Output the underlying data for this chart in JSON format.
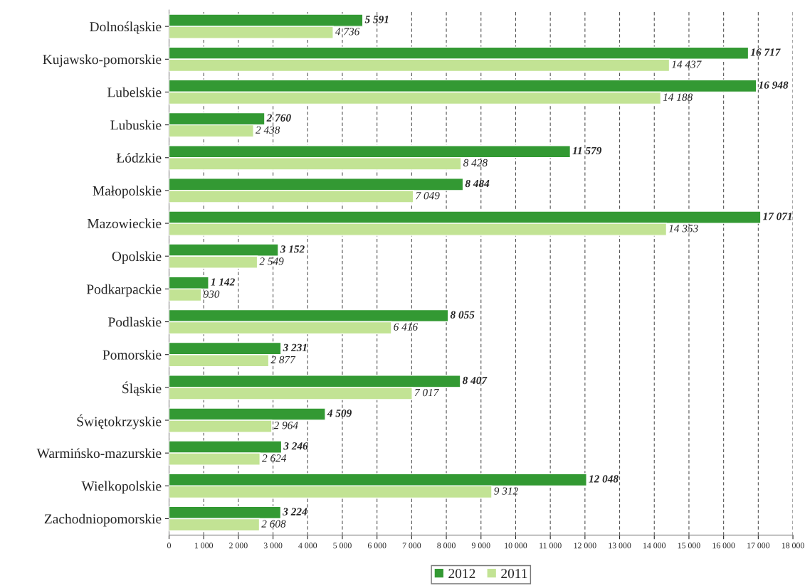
{
  "chart_data": {
    "type": "bar",
    "orientation": "horizontal",
    "categories": [
      "Dolnośląskie",
      "Kujawsko-pomorskie",
      "Lubelskie",
      "Lubuskie",
      "Łódzkie",
      "Małopolskie",
      "Mazowieckie",
      "Opolskie",
      "Podkarpackie",
      "Podlaskie",
      "Pomorskie",
      "Śląskie",
      "Świętokrzyskie",
      "Warmińsko-mazurskie",
      "Wielkopolskie",
      "Zachodniopomorskie"
    ],
    "series": [
      {
        "name": "2012",
        "color": "#339933",
        "values": [
          5591,
          16717,
          16948,
          2760,
          11579,
          8484,
          17071,
          3152,
          1142,
          8055,
          3231,
          8407,
          4509,
          3246,
          12048,
          3224
        ],
        "value_labels": [
          "5 591",
          "16 717",
          "16 948",
          "2 760",
          "11 579",
          "8 484",
          "17 071",
          "3 152",
          "1 142",
          "8 055",
          "3 231",
          "8 407",
          "4 509",
          "3 246",
          "12 048",
          "3 224"
        ]
      },
      {
        "name": "2011",
        "color": "#c2e394",
        "values": [
          4736,
          14437,
          14188,
          2438,
          8428,
          7049,
          14353,
          2549,
          930,
          6416,
          2877,
          7017,
          2964,
          2624,
          9312,
          2608
        ],
        "value_labels": [
          "4 736",
          "14 437",
          "14 188",
          "2 438",
          "8 428",
          "7 049",
          "14 353",
          "2 549",
          "930",
          "6 416",
          "2 877",
          "7 017",
          "2 964",
          "2 624",
          "9 312",
          "2 608"
        ]
      }
    ],
    "xlim": [
      0,
      18000
    ],
    "xticks": [
      0,
      {
        "value": 1000,
        "label": "1 000"
      },
      {
        "value": 2000,
        "label": "2 000"
      },
      {
        "value": 3000,
        "label": "3 000"
      },
      {
        "value": 4000,
        "label": "4 000"
      },
      {
        "value": 5000,
        "label": "5 000"
      },
      {
        "value": 6000,
        "label": "6 000"
      },
      {
        "value": 7000,
        "label": "7 000"
      },
      {
        "value": 8000,
        "label": "8 000"
      },
      {
        "value": 9000,
        "label": "9 000"
      },
      {
        "value": 10000,
        "label": "10 000"
      },
      {
        "value": 11000,
        "label": "11 000"
      },
      {
        "value": 12000,
        "label": "12 000"
      },
      {
        "value": 13000,
        "label": "13 000"
      },
      {
        "value": 14000,
        "label": "14 000"
      },
      {
        "value": 15000,
        "label": "15 000"
      },
      {
        "value": 16000,
        "label": "16 000"
      },
      {
        "value": 17000,
        "label": "17 000"
      },
      {
        "value": 18000,
        "label": "18 000"
      }
    ],
    "grid": "x",
    "legend": "bottom"
  }
}
